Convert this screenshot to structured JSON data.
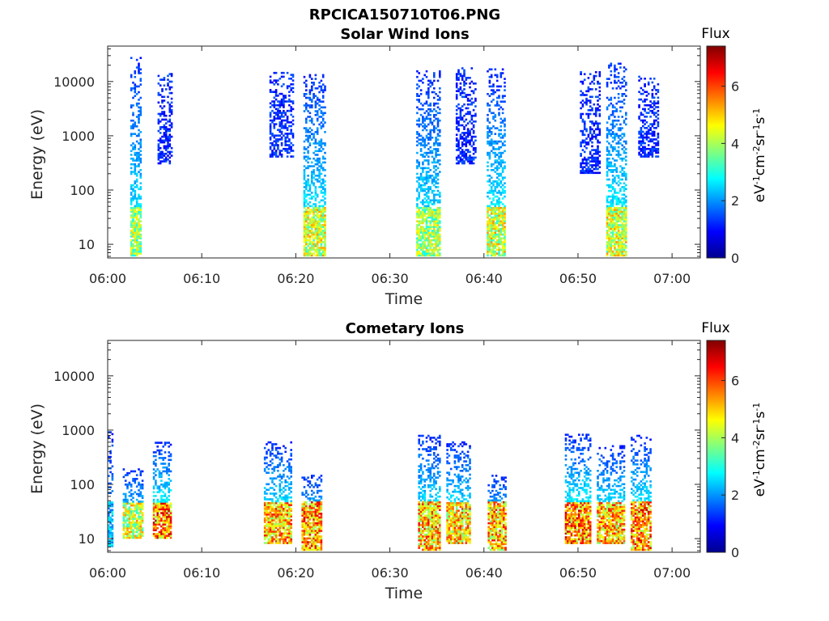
{
  "figure": {
    "title": "RPCICA150710T06.PNG"
  },
  "colorbar": {
    "label": "Flux",
    "unit_label_parts": [
      "eV",
      "-1",
      "cm",
      "-2",
      "sr",
      "-1",
      "s",
      "-1"
    ],
    "ticks": [
      "0",
      "2",
      "4",
      "6"
    ],
    "range": [
      0,
      7.4
    ],
    "colormap": "jet"
  },
  "chart_data": [
    {
      "type": "heatmap",
      "title": "Solar Wind Ions",
      "xlabel": "Time",
      "ylabel": "Energy (eV)",
      "x_ticks": [
        "06:00",
        "06:10",
        "06:20",
        "06:30",
        "06:40",
        "06:50",
        "07:00"
      ],
      "xlim_minutes": [
        0,
        63
      ],
      "y_ticks": [
        "10",
        "100",
        "1000",
        "10000"
      ],
      "y_scale": "log",
      "ylim": [
        5.6,
        45000
      ],
      "bursts": [
        {
          "t_min": 2.4,
          "t_max": 3.6,
          "e_min": 6,
          "e_max": 28000,
          "flux_peak": 5.0
        },
        {
          "t_min": 5.3,
          "t_max": 6.8,
          "e_min": 300,
          "e_max": 15000,
          "flux_peak": 1.5
        },
        {
          "t_min": 17.2,
          "t_max": 19.6,
          "e_min": 400,
          "e_max": 15000,
          "flux_peak": 1.5
        },
        {
          "t_min": 20.8,
          "t_max": 23.0,
          "e_min": 6,
          "e_max": 13000,
          "flux_peak": 5.5
        },
        {
          "t_min": 32.8,
          "t_max": 35.4,
          "e_min": 6,
          "e_max": 15000,
          "flux_peak": 5.0
        },
        {
          "t_min": 37.0,
          "t_max": 39.2,
          "e_min": 300,
          "e_max": 17000,
          "flux_peak": 1.5
        },
        {
          "t_min": 40.3,
          "t_max": 42.2,
          "e_min": 6,
          "e_max": 17000,
          "flux_peak": 5.5
        },
        {
          "t_min": 50.2,
          "t_max": 52.4,
          "e_min": 200,
          "e_max": 15000,
          "flux_peak": 1.5
        },
        {
          "t_min": 53.0,
          "t_max": 55.2,
          "e_min": 6,
          "e_max": 22000,
          "flux_peak": 5.5
        },
        {
          "t_min": 56.4,
          "t_max": 58.6,
          "e_min": 400,
          "e_max": 12000,
          "flux_peak": 1.5
        }
      ]
    },
    {
      "type": "heatmap",
      "title": "Cometary Ions",
      "xlabel": "Time",
      "ylabel": "Energy (eV)",
      "x_ticks": [
        "06:00",
        "06:10",
        "06:20",
        "06:30",
        "06:40",
        "06:50",
        "07:00"
      ],
      "xlim_minutes": [
        0,
        63
      ],
      "y_ticks": [
        "10",
        "100",
        "1000",
        "10000"
      ],
      "y_scale": "log",
      "ylim": [
        5.6,
        45000
      ],
      "bursts": [
        {
          "t_min": 0.0,
          "t_max": 0.5,
          "e_min": 7,
          "e_max": 900,
          "flux_peak": 3.0
        },
        {
          "t_min": 1.6,
          "t_max": 3.8,
          "e_min": 10,
          "e_max": 200,
          "flux_peak": 5.5
        },
        {
          "t_min": 4.8,
          "t_max": 6.8,
          "e_min": 10,
          "e_max": 600,
          "flux_peak": 7.0
        },
        {
          "t_min": 16.6,
          "t_max": 19.4,
          "e_min": 8,
          "e_max": 600,
          "flux_peak": 6.5
        },
        {
          "t_min": 20.6,
          "t_max": 22.6,
          "e_min": 6,
          "e_max": 150,
          "flux_peak": 6.8
        },
        {
          "t_min": 33.0,
          "t_max": 35.4,
          "e_min": 6,
          "e_max": 800,
          "flux_peak": 6.5
        },
        {
          "t_min": 36.0,
          "t_max": 38.6,
          "e_min": 8,
          "e_max": 600,
          "flux_peak": 6.2
        },
        {
          "t_min": 40.4,
          "t_max": 42.4,
          "e_min": 6,
          "e_max": 150,
          "flux_peak": 6.5
        },
        {
          "t_min": 48.6,
          "t_max": 51.4,
          "e_min": 8,
          "e_max": 800,
          "flux_peak": 7.0
        },
        {
          "t_min": 52.0,
          "t_max": 55.0,
          "e_min": 8,
          "e_max": 500,
          "flux_peak": 6.5
        },
        {
          "t_min": 55.6,
          "t_max": 57.8,
          "e_min": 6,
          "e_max": 800,
          "flux_peak": 7.0
        }
      ]
    }
  ]
}
